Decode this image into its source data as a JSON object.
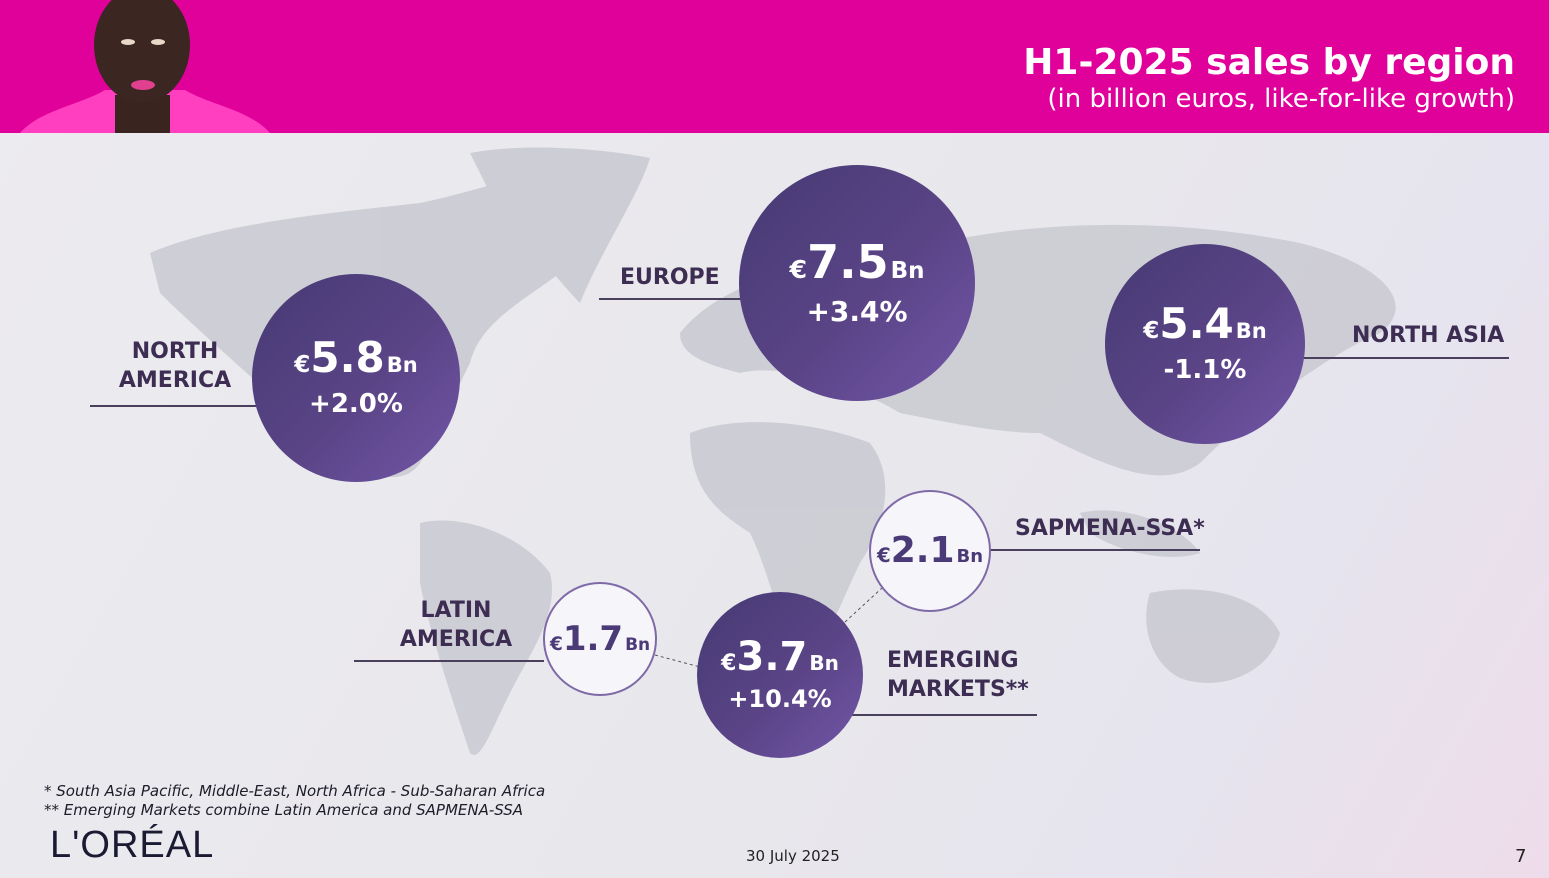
{
  "header": {
    "title": "H1-2025 sales by region",
    "subtitle": "(in billion euros, like-for-like growth)"
  },
  "colors": {
    "brand_pink": "#e0009a",
    "circle_purple": "#5a4486"
  },
  "regions": {
    "europe": {
      "label": "EUROPE",
      "currency": "€",
      "value": "7.5",
      "unit": "Bn",
      "growth": "+3.4%"
    },
    "north_america": {
      "label1": "NORTH",
      "label2": "AMERICA",
      "currency": "€",
      "value": "5.8",
      "unit": "Bn",
      "growth": "+2.0%"
    },
    "north_asia": {
      "label": "NORTH ASIA",
      "currency": "€",
      "value": "5.4",
      "unit": "Bn",
      "growth": "-1.1%"
    },
    "sapmena": {
      "label": "SAPMENA-SSA*",
      "currency": "€",
      "value": "2.1",
      "unit": "Bn"
    },
    "latin_america": {
      "label1": "LATIN",
      "label2": "AMERICA",
      "currency": "€",
      "value": "1.7",
      "unit": "Bn"
    },
    "emerging": {
      "label1": "EMERGING",
      "label2": "MARKETS**",
      "currency": "€",
      "value": "3.7",
      "unit": "Bn",
      "growth": "+10.4%"
    }
  },
  "footnotes": [
    "* South Asia Pacific, Middle-East, North Africa - Sub-Saharan Africa",
    "** Emerging Markets combine Latin America and SAPMENA-SSA"
  ],
  "footer": {
    "logo": "L'ORÉAL",
    "date": "30 July 2025",
    "page": "7"
  }
}
